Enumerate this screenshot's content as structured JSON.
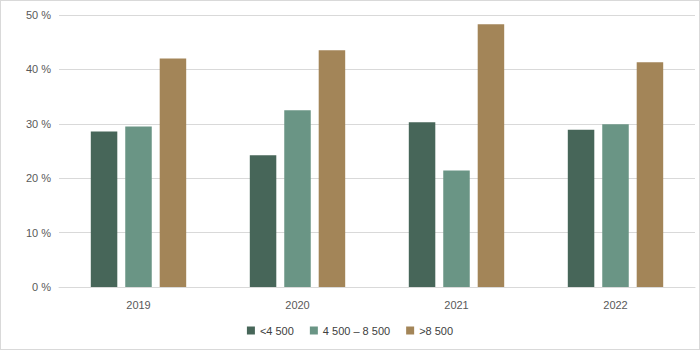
{
  "chart_data": {
    "type": "bar",
    "categories": [
      "2019",
      "2020",
      "2021",
      "2022"
    ],
    "series": [
      {
        "name": "<4 500",
        "color": "#476659",
        "values": [
          28.6,
          24.2,
          30.3,
          28.9
        ]
      },
      {
        "name": "4 500 – 8 500",
        "color": "#6a9585",
        "values": [
          29.5,
          32.5,
          21.4,
          29.9
        ]
      },
      {
        "name": ">8 500",
        "color": "#a38558",
        "values": [
          42.0,
          43.5,
          48.3,
          41.3
        ]
      }
    ],
    "ylim": [
      0,
      50
    ],
    "yticks": [
      {
        "value": 0,
        "label": "0 %"
      },
      {
        "value": 10,
        "label": "10 %"
      },
      {
        "value": 20,
        "label": "20 %"
      },
      {
        "value": 30,
        "label": "30 %"
      },
      {
        "value": 40,
        "label": "40 %"
      },
      {
        "value": 50,
        "label": "50 %"
      }
    ],
    "grid": true,
    "legend": "bottom"
  }
}
